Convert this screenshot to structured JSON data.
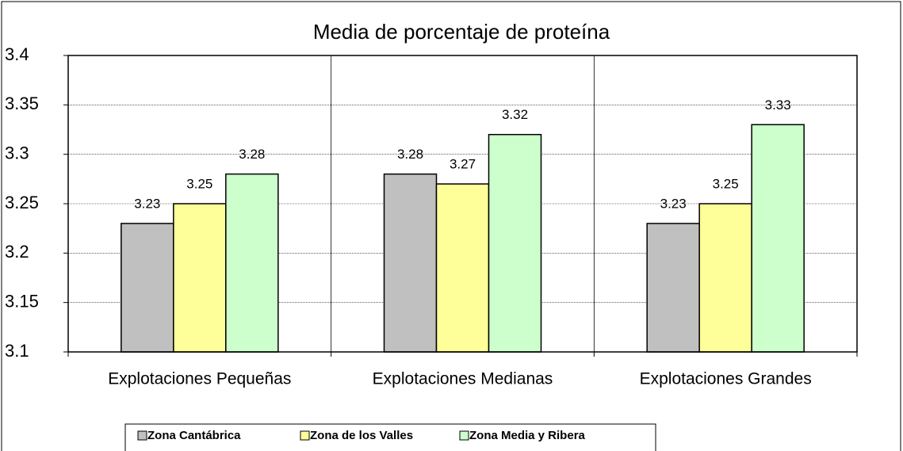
{
  "chart_data": {
    "type": "bar",
    "title": "Media de porcentaje de proteína",
    "categories": [
      "Explotaciones Pequeñas",
      "Explotaciones Medianas",
      "Explotaciones Grandes"
    ],
    "series": [
      {
        "name": "Zona Cantábrica",
        "color": "#c0c0c0",
        "values": [
          3.23,
          3.28,
          3.23
        ]
      },
      {
        "name": "Zona de los Valles",
        "color": "#ffff99",
        "values": [
          3.25,
          3.27,
          3.25
        ]
      },
      {
        "name": "Zona Media y Ribera",
        "color": "#ccffcc",
        "values": [
          3.28,
          3.32,
          3.33
        ]
      }
    ],
    "ylim": [
      3.1,
      3.4
    ],
    "yticks": [
      3.1,
      3.15,
      3.2,
      3.25,
      3.3,
      3.35,
      3.4
    ],
    "grid": true,
    "legend": "bottom"
  }
}
